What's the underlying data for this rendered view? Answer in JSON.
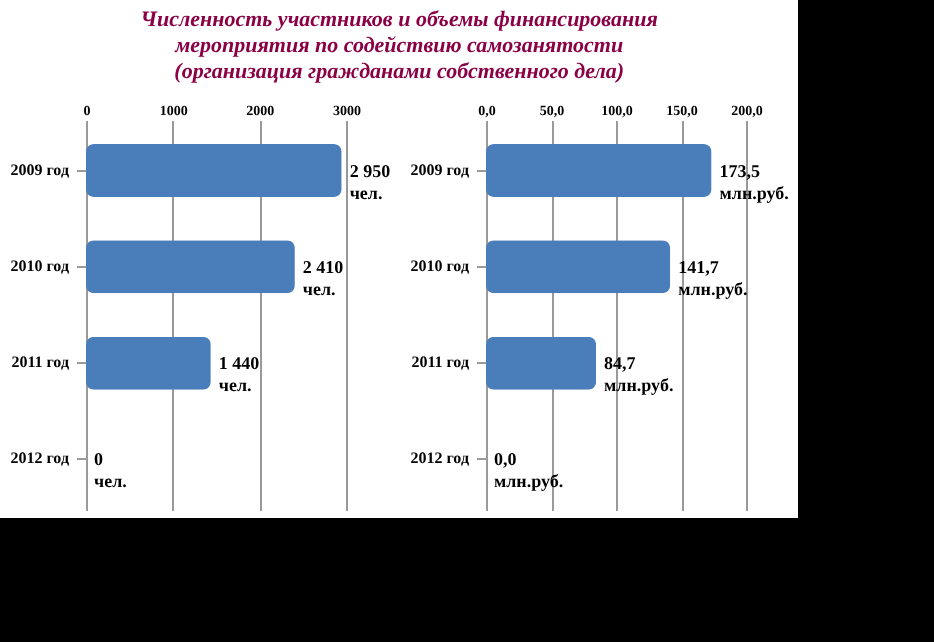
{
  "chart_data": [
    {
      "type": "bar",
      "orientation": "horizontal",
      "title": "Численность участников и объемы финансирования\nмероприятия по содействию самозанятости\n(организация гражданами собственного дела)",
      "categories": [
        "2009 год",
        "2010 год",
        "2011 год",
        "2012 год"
      ],
      "values": [
        2950,
        2410,
        1440,
        0
      ],
      "value_labels": [
        "2 950\nчел.",
        "2 410\nчел.",
        "1 440\nчел.",
        "0\nчел."
      ],
      "color": "#4a7ebb",
      "xlim": [
        0,
        3000
      ],
      "xticks": [
        0,
        1000,
        2000,
        3000
      ],
      "grid": "x"
    },
    {
      "type": "bar",
      "orientation": "horizontal",
      "categories": [
        "2009 год",
        "2010 год",
        "2011 год",
        "2012 год"
      ],
      "values": [
        173.5,
        141.7,
        84.7,
        0
      ],
      "value_labels": [
        "173,5\nмлн.руб.",
        "141,7\nмлн.руб.",
        "84,7\nмлн.руб.",
        "0,0\nмлн.руб."
      ],
      "color": "#4a7ebb",
      "xlim": [
        0,
        200
      ],
      "xticks": [
        {
          "value": 0,
          "label": "0,0"
        },
        {
          "value": 50,
          "label": "50,0"
        },
        {
          "value": 100,
          "label": "100,0"
        },
        {
          "value": 150,
          "label": "150,0"
        },
        {
          "value": 200,
          "label": "200,0"
        }
      ],
      "grid": "x"
    }
  ]
}
